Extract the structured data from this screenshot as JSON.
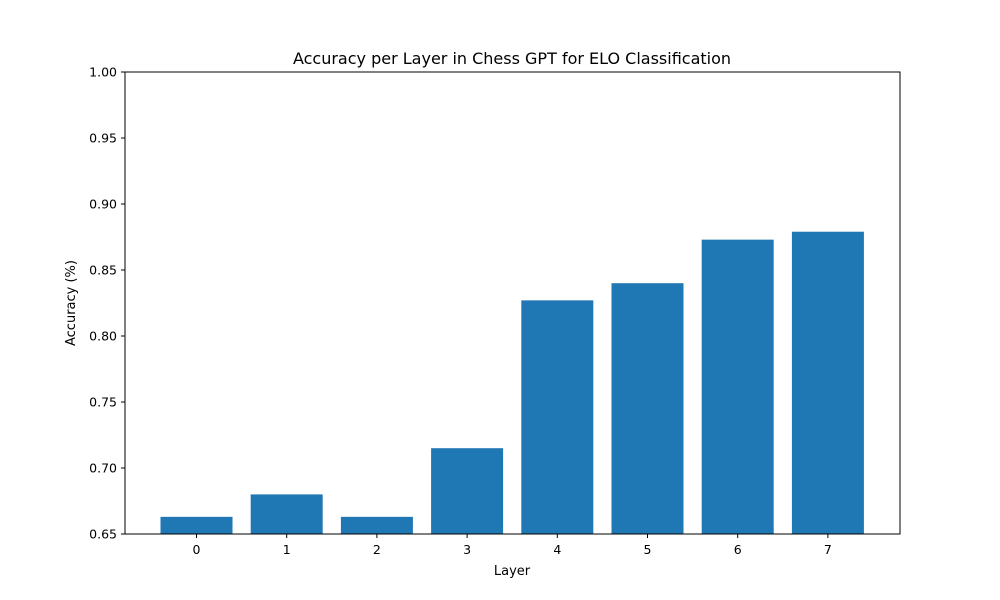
{
  "chart_data": {
    "type": "bar",
    "title": "Accuracy per Layer in Chess GPT for ELO Classification",
    "xlabel": "Layer",
    "ylabel": "Accuracy (%)",
    "categories": [
      "0",
      "1",
      "2",
      "3",
      "4",
      "5",
      "6",
      "7"
    ],
    "values": [
      0.663,
      0.68,
      0.663,
      0.715,
      0.827,
      0.84,
      0.873,
      0.879
    ],
    "ylim": [
      0.65,
      1.0
    ],
    "yticks": [
      "0.65",
      "0.70",
      "0.75",
      "0.80",
      "0.85",
      "0.90",
      "0.95",
      "1.00"
    ],
    "grid": false,
    "legend": "none",
    "bar_color": "#1f77b4"
  }
}
